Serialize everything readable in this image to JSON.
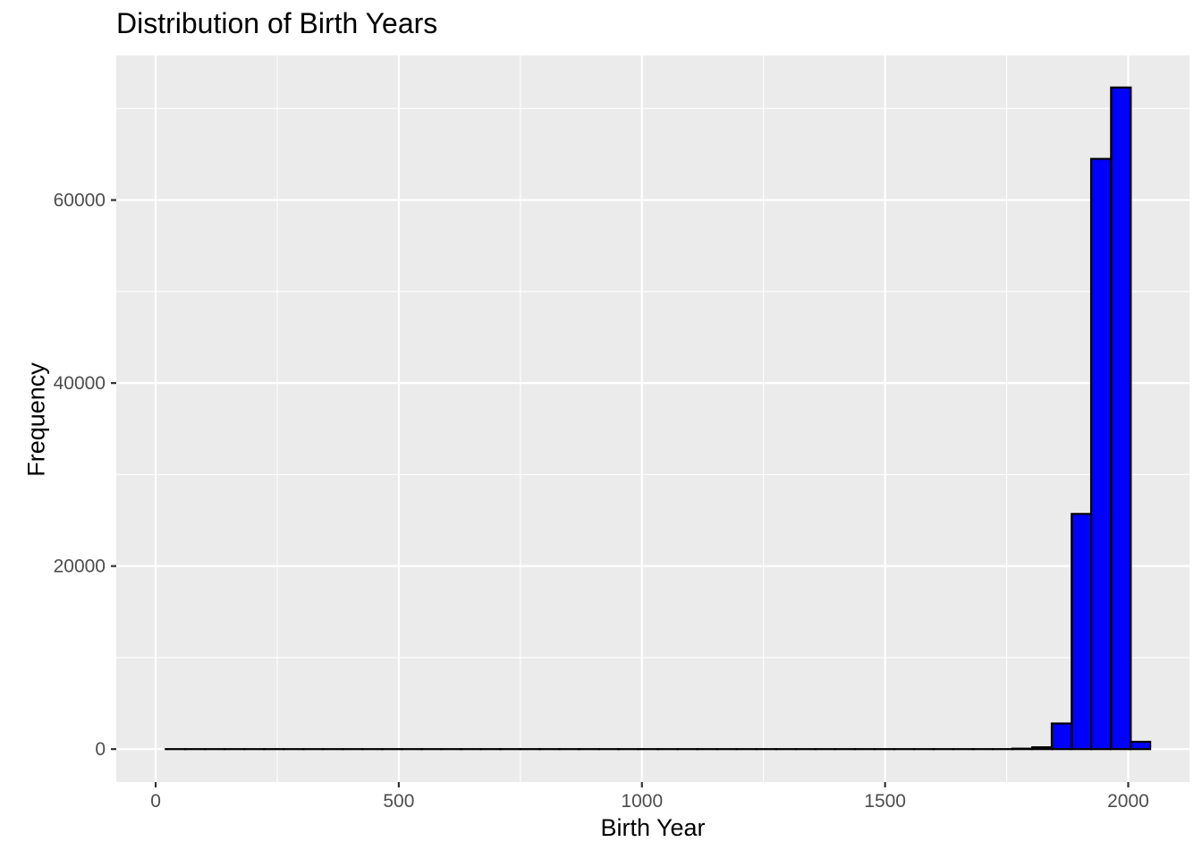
{
  "chart_data": {
    "type": "bar",
    "title": "Distribution of Birth Years",
    "xlabel": "Birth Year",
    "ylabel": "Frequency",
    "bin_width": 40.5,
    "xlim": [
      -81,
      2126
    ],
    "ylim": [
      -3600,
      75800
    ],
    "x_ticks": [
      0,
      500,
      1000,
      1500,
      2000
    ],
    "y_ticks": [
      0,
      20000,
      40000,
      60000
    ],
    "bins": [
      {
        "x": 41,
        "count": 0
      },
      {
        "x": 81,
        "count": 0
      },
      {
        "x": 122,
        "count": 0
      },
      {
        "x": 162,
        "count": 0
      },
      {
        "x": 203,
        "count": 0
      },
      {
        "x": 243,
        "count": 0
      },
      {
        "x": 284,
        "count": 0
      },
      {
        "x": 324,
        "count": 0
      },
      {
        "x": 365,
        "count": 0
      },
      {
        "x": 405,
        "count": 0
      },
      {
        "x": 446,
        "count": 0
      },
      {
        "x": 486,
        "count": 0
      },
      {
        "x": 527,
        "count": 0
      },
      {
        "x": 567,
        "count": 0
      },
      {
        "x": 608,
        "count": 0
      },
      {
        "x": 648,
        "count": 0
      },
      {
        "x": 689,
        "count": 0
      },
      {
        "x": 729,
        "count": 0
      },
      {
        "x": 770,
        "count": 0
      },
      {
        "x": 810,
        "count": 0
      },
      {
        "x": 851,
        "count": 0
      },
      {
        "x": 891,
        "count": 0
      },
      {
        "x": 932,
        "count": 0
      },
      {
        "x": 972,
        "count": 0
      },
      {
        "x": 1013,
        "count": 0
      },
      {
        "x": 1053,
        "count": 0
      },
      {
        "x": 1094,
        "count": 0
      },
      {
        "x": 1134,
        "count": 0
      },
      {
        "x": 1175,
        "count": 0
      },
      {
        "x": 1215,
        "count": 0
      },
      {
        "x": 1256,
        "count": 0
      },
      {
        "x": 1296,
        "count": 0
      },
      {
        "x": 1337,
        "count": 0
      },
      {
        "x": 1377,
        "count": 0
      },
      {
        "x": 1418,
        "count": 0
      },
      {
        "x": 1458,
        "count": 0
      },
      {
        "x": 1499,
        "count": 0
      },
      {
        "x": 1539,
        "count": 0
      },
      {
        "x": 1580,
        "count": 0
      },
      {
        "x": 1620,
        "count": 0
      },
      {
        "x": 1661,
        "count": 0
      },
      {
        "x": 1701,
        "count": 0
      },
      {
        "x": 1742,
        "count": 0
      },
      {
        "x": 1782,
        "count": 50
      },
      {
        "x": 1823,
        "count": 200
      },
      {
        "x": 1863,
        "count": 2800
      },
      {
        "x": 1904,
        "count": 25700
      },
      {
        "x": 1944,
        "count": 64500
      },
      {
        "x": 1985,
        "count": 72300
      },
      {
        "x": 2025,
        "count": 800
      }
    ],
    "bar_fill": "#0000ff",
    "bar_stroke": "#000000",
    "panel_background": "#ebebeb",
    "grid_color": "#ffffff",
    "grid": true,
    "legend": "none"
  }
}
